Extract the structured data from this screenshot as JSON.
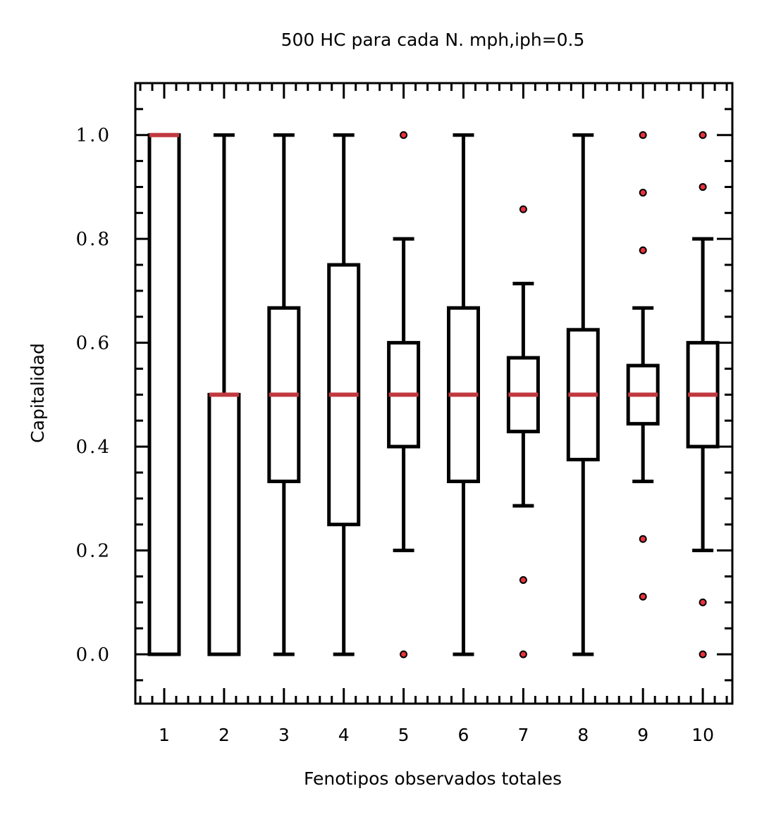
{
  "chart_data": {
    "type": "box",
    "title": "500 HC para cada N. mph,iph=0.5",
    "xlabel": "Fenotipos observados totales",
    "ylabel": "Capitalidad",
    "categories": [
      "1",
      "2",
      "3",
      "4",
      "5",
      "6",
      "7",
      "8",
      "9",
      "10"
    ],
    "yticks": [
      "0.0",
      "0.2",
      "0.4",
      "0.6",
      "0.8",
      "1.0"
    ],
    "ylim": [
      -0.095,
      1.1
    ],
    "grid": false,
    "colors": {
      "box": "#000000",
      "median": "#c0393f",
      "outlier_fill": "#e8323c"
    },
    "boxes": [
      {
        "label": "1",
        "whislo": 0.0,
        "q1": 0.0,
        "med": 1.0,
        "q3": 1.0,
        "whishi": 1.0,
        "fliers": []
      },
      {
        "label": "2",
        "whislo": 0.0,
        "q1": 0.0,
        "med": 0.5,
        "q3": 0.5,
        "whishi": 1.0,
        "fliers": []
      },
      {
        "label": "3",
        "whislo": 0.0,
        "q1": 0.333,
        "med": 0.5,
        "q3": 0.667,
        "whishi": 1.0,
        "fliers": []
      },
      {
        "label": "4",
        "whislo": 0.0,
        "q1": 0.25,
        "med": 0.5,
        "q3": 0.75,
        "whishi": 1.0,
        "fliers": []
      },
      {
        "label": "5",
        "whislo": 0.2,
        "q1": 0.4,
        "med": 0.5,
        "q3": 0.6,
        "whishi": 0.8,
        "fliers": [
          0.0,
          1.0
        ]
      },
      {
        "label": "6",
        "whislo": 0.0,
        "q1": 0.333,
        "med": 0.5,
        "q3": 0.667,
        "whishi": 1.0,
        "fliers": []
      },
      {
        "label": "7",
        "whislo": 0.286,
        "q1": 0.429,
        "med": 0.5,
        "q3": 0.571,
        "whishi": 0.714,
        "fliers": [
          0.0,
          0.143,
          0.857
        ]
      },
      {
        "label": "8",
        "whislo": 0.0,
        "q1": 0.375,
        "med": 0.5,
        "q3": 0.625,
        "whishi": 1.0,
        "fliers": []
      },
      {
        "label": "9",
        "whislo": 0.333,
        "q1": 0.444,
        "med": 0.5,
        "q3": 0.556,
        "whishi": 0.667,
        "fliers": [
          0.111,
          0.222,
          0.778,
          0.889,
          1.0
        ]
      },
      {
        "label": "10",
        "whislo": 0.2,
        "q1": 0.4,
        "med": 0.5,
        "q3": 0.6,
        "whishi": 0.8,
        "fliers": [
          0.0,
          0.1,
          0.9,
          1.0
        ]
      }
    ]
  }
}
